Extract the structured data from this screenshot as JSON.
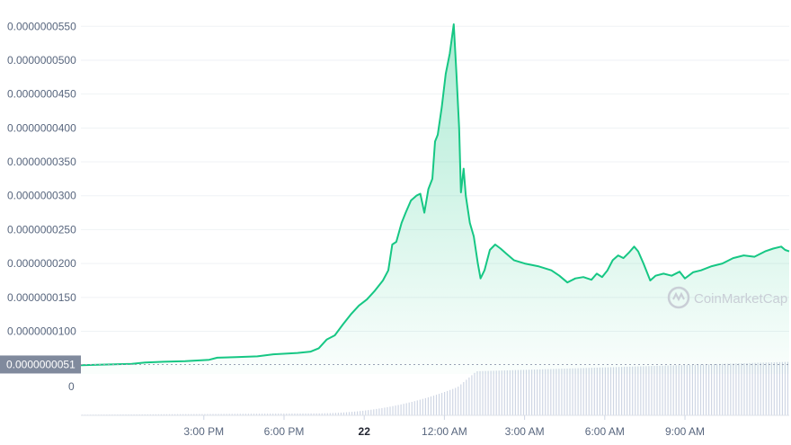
{
  "chart_data": {
    "type": "area",
    "title": "",
    "xlabel": "",
    "ylabel": "",
    "ylim": [
      3.7e-09,
      5.57e-08
    ],
    "y_ticks": [
      {
        "value": 1e-08,
        "label": "0.0000000100"
      },
      {
        "value": 1.5e-08,
        "label": "0.0000000150"
      },
      {
        "value": 2e-08,
        "label": "0.0000000200"
      },
      {
        "value": 2.5e-08,
        "label": "0.0000000250"
      },
      {
        "value": 3e-08,
        "label": "0.0000000300"
      },
      {
        "value": 3.5e-08,
        "label": "0.0000000350"
      },
      {
        "value": 4e-08,
        "label": "0.0000000400"
      },
      {
        "value": 4.5e-08,
        "label": "0.0000000450"
      },
      {
        "value": 5e-08,
        "label": "0.0000000500"
      },
      {
        "value": 5.5e-08,
        "label": "0.0000000550"
      }
    ],
    "current_price": {
      "value": 5.1e-09,
      "label": "0.0000000051"
    },
    "volume_zero_label": "0",
    "x_ticks": [
      {
        "hour": 3,
        "label": "3:00 PM",
        "bold": false
      },
      {
        "hour": 6,
        "label": "6:00 PM",
        "bold": false
      },
      {
        "hour": 9,
        "label": "22",
        "bold": true
      },
      {
        "hour": 12,
        "label": "12:00 AM",
        "bold": false
      },
      {
        "hour": 15,
        "label": "3:00 AM",
        "bold": false
      },
      {
        "hour": 18,
        "label": "6:00 AM",
        "bold": false
      },
      {
        "hour": 21,
        "label": "9:00 AM",
        "bold": false
      }
    ],
    "x_range_hours": [
      -1.6,
      24.9
    ],
    "grid": true,
    "watermark": "CoinMarketCap",
    "colors": {
      "line": "#16c784",
      "area": "#16c784",
      "volume": "#cfd6e4",
      "grid": "#eff2f5",
      "current": "#808a9d"
    },
    "series": [
      {
        "points": [
          [
            -1.6,
            5e-09
          ],
          [
            -0.5,
            5.1e-09
          ],
          [
            0.3,
            5.2e-09
          ],
          [
            0.8,
            5.4e-09
          ],
          [
            1.5,
            5.5e-09
          ],
          [
            2.3,
            5.6e-09
          ],
          [
            3.2,
            5.8e-09
          ],
          [
            3.5,
            6.1e-09
          ],
          [
            4.2,
            6.2e-09
          ],
          [
            5.0,
            6.3e-09
          ],
          [
            5.6,
            6.6e-09
          ],
          [
            6.5,
            6.8e-09
          ],
          [
            7.0,
            7e-09
          ],
          [
            7.3,
            7.5e-09
          ],
          [
            7.6,
            8.8e-09
          ],
          [
            7.9,
            9.4e-09
          ],
          [
            8.2,
            1.1e-08
          ],
          [
            8.5,
            1.25e-08
          ],
          [
            8.8,
            1.38e-08
          ],
          [
            9.1,
            1.47e-08
          ],
          [
            9.4,
            1.6e-08
          ],
          [
            9.7,
            1.75e-08
          ],
          [
            9.9,
            1.9e-08
          ],
          [
            10.05,
            2.28e-08
          ],
          [
            10.2,
            2.32e-08
          ],
          [
            10.4,
            2.6e-08
          ],
          [
            10.55,
            2.75e-08
          ],
          [
            10.75,
            2.93e-08
          ],
          [
            10.95,
            3e-08
          ],
          [
            11.1,
            3.03e-08
          ],
          [
            11.25,
            2.75e-08
          ],
          [
            11.4,
            3.1e-08
          ],
          [
            11.55,
            3.25e-08
          ],
          [
            11.65,
            3.8e-08
          ],
          [
            11.75,
            3.9e-08
          ],
          [
            11.9,
            4.3e-08
          ],
          [
            12.05,
            4.8e-08
          ],
          [
            12.2,
            5.1e-08
          ],
          [
            12.35,
            5.53e-08
          ],
          [
            12.45,
            4.8e-08
          ],
          [
            12.55,
            4e-08
          ],
          [
            12.62,
            3.05e-08
          ],
          [
            12.72,
            3.4e-08
          ],
          [
            12.8,
            3e-08
          ],
          [
            12.95,
            2.6e-08
          ],
          [
            13.1,
            2.4e-08
          ],
          [
            13.25,
            2e-08
          ],
          [
            13.35,
            1.78e-08
          ],
          [
            13.5,
            1.9e-08
          ],
          [
            13.7,
            2.2e-08
          ],
          [
            13.9,
            2.28e-08
          ],
          [
            14.1,
            2.22e-08
          ],
          [
            14.3,
            2.15e-08
          ],
          [
            14.6,
            2.05e-08
          ],
          [
            15.0,
            2e-08
          ],
          [
            15.5,
            1.96e-08
          ],
          [
            16.0,
            1.9e-08
          ],
          [
            16.3,
            1.82e-08
          ],
          [
            16.6,
            1.72e-08
          ],
          [
            16.9,
            1.78e-08
          ],
          [
            17.2,
            1.8e-08
          ],
          [
            17.5,
            1.76e-08
          ],
          [
            17.7,
            1.85e-08
          ],
          [
            17.9,
            1.8e-08
          ],
          [
            18.1,
            1.9e-08
          ],
          [
            18.3,
            2.05e-08
          ],
          [
            18.5,
            2.12e-08
          ],
          [
            18.7,
            2.08e-08
          ],
          [
            18.9,
            2.16e-08
          ],
          [
            19.1,
            2.25e-08
          ],
          [
            19.25,
            2.18e-08
          ],
          [
            19.45,
            2e-08
          ],
          [
            19.7,
            1.75e-08
          ],
          [
            19.9,
            1.82e-08
          ],
          [
            20.2,
            1.85e-08
          ],
          [
            20.5,
            1.82e-08
          ],
          [
            20.8,
            1.88e-08
          ],
          [
            21.0,
            1.78e-08
          ],
          [
            21.3,
            1.87e-08
          ],
          [
            21.6,
            1.9e-08
          ],
          [
            22.0,
            1.96e-08
          ],
          [
            22.4,
            2e-08
          ],
          [
            22.8,
            2.08e-08
          ],
          [
            23.2,
            2.12e-08
          ],
          [
            23.6,
            2.1e-08
          ],
          [
            24.0,
            2.18e-08
          ],
          [
            24.3,
            2.22e-08
          ],
          [
            24.6,
            2.25e-08
          ],
          [
            24.75,
            2.2e-08
          ],
          [
            24.9,
            2.18e-08
          ]
        ]
      }
    ]
  }
}
